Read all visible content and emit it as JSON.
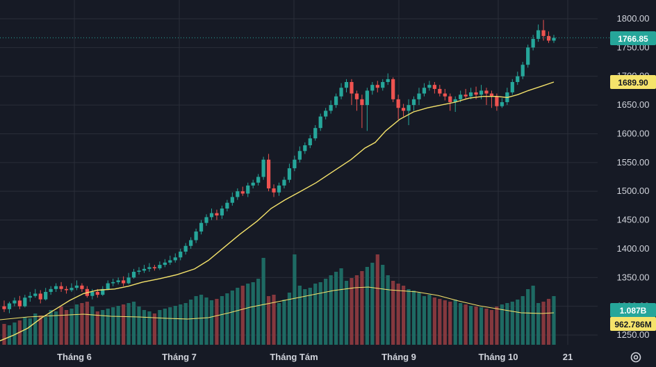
{
  "chart_data": {
    "type": "candlestick",
    "price_axis": {
      "ticks": [
        "1800.00",
        "1750.00",
        "1700.00",
        "1650.00",
        "1600.00",
        "1550.00",
        "1500.00",
        "1450.00",
        "1400.00",
        "1350.00",
        "1300.00",
        "1250.00"
      ],
      "range": [
        1240,
        1820
      ]
    },
    "x_axis": {
      "ticks": [
        "Tháng 6",
        "Tháng 7",
        "Tháng Tám",
        "Tháng 9",
        "Tháng 10",
        "21"
      ]
    },
    "last_price": "1766.85",
    "ma_price": "1689.90",
    "last_volume": "1.087B",
    "ma_volume": "962.786M",
    "colors": {
      "up": "#26a69a",
      "down": "#ef5350",
      "ma": "#f5e36b",
      "background": "#161a25",
      "grid": "#2a2e39",
      "text": "#d1d4dc"
    },
    "price_ma_points": [
      [
        0,
        1240
      ],
      [
        20,
        1250
      ],
      [
        40,
        1262
      ],
      [
        60,
        1280
      ],
      [
        80,
        1295
      ],
      [
        100,
        1310
      ],
      [
        120,
        1322
      ],
      [
        140,
        1328
      ],
      [
        165,
        1330
      ],
      [
        185,
        1335
      ],
      [
        205,
        1342
      ],
      [
        230,
        1348
      ],
      [
        255,
        1355
      ],
      [
        280,
        1365
      ],
      [
        300,
        1380
      ],
      [
        320,
        1400
      ],
      [
        345,
        1425
      ],
      [
        370,
        1448
      ],
      [
        390,
        1470
      ],
      [
        410,
        1485
      ],
      [
        430,
        1498
      ],
      [
        455,
        1515
      ],
      [
        480,
        1535
      ],
      [
        505,
        1555
      ],
      [
        525,
        1575
      ],
      [
        540,
        1585
      ],
      [
        555,
        1605
      ],
      [
        575,
        1625
      ],
      [
        595,
        1638
      ],
      [
        615,
        1645
      ],
      [
        635,
        1650
      ],
      [
        655,
        1655
      ],
      [
        675,
        1662
      ],
      [
        695,
        1665
      ],
      [
        715,
        1665
      ],
      [
        730,
        1663
      ],
      [
        745,
        1668
      ],
      [
        760,
        1675
      ],
      [
        780,
        1683
      ],
      [
        797,
        1690
      ]
    ],
    "volume_ma_points": [
      [
        0,
        460
      ],
      [
        40,
        456
      ],
      [
        80,
        454
      ],
      [
        120,
        452
      ],
      [
        160,
        455
      ],
      [
        200,
        456
      ],
      [
        240,
        458
      ],
      [
        270,
        459
      ],
      [
        300,
        457
      ],
      [
        330,
        450
      ],
      [
        360,
        442
      ],
      [
        390,
        436
      ],
      [
        420,
        430
      ],
      [
        450,
        424
      ],
      [
        480,
        418
      ],
      [
        510,
        414
      ],
      [
        530,
        413
      ],
      [
        560,
        417
      ],
      [
        600,
        420
      ],
      [
        630,
        425
      ],
      [
        660,
        433
      ],
      [
        690,
        440
      ],
      [
        720,
        445
      ],
      [
        750,
        450
      ],
      [
        780,
        451
      ],
      [
        797,
        450
      ]
    ],
    "candles": [
      [
        1300,
        1295,
        1310,
        1290
      ],
      [
        1295,
        1305,
        1308,
        1288
      ],
      [
        1305,
        1310,
        1315,
        1300
      ],
      [
        1310,
        1300,
        1318,
        1295
      ],
      [
        1300,
        1315,
        1320,
        1298
      ],
      [
        1315,
        1318,
        1325,
        1308
      ],
      [
        1318,
        1322,
        1330,
        1315
      ],
      [
        1322,
        1312,
        1328,
        1305
      ],
      [
        1312,
        1325,
        1332,
        1310
      ],
      [
        1325,
        1330,
        1335,
        1320
      ],
      [
        1330,
        1335,
        1340,
        1325
      ],
      [
        1335,
        1330,
        1342,
        1325
      ],
      [
        1330,
        1328,
        1335,
        1322
      ],
      [
        1328,
        1332,
        1340,
        1325
      ],
      [
        1332,
        1336,
        1345,
        1328
      ],
      [
        1336,
        1330,
        1340,
        1325
      ],
      [
        1330,
        1318,
        1335,
        1315
      ],
      [
        1318,
        1325,
        1330,
        1312
      ],
      [
        1325,
        1320,
        1330,
        1315
      ],
      [
        1320,
        1330,
        1335,
        1318
      ],
      [
        1330,
        1340,
        1345,
        1328
      ],
      [
        1340,
        1342,
        1348,
        1335
      ],
      [
        1342,
        1345,
        1350,
        1338
      ],
      [
        1345,
        1340,
        1352,
        1335
      ],
      [
        1340,
        1350,
        1358,
        1338
      ],
      [
        1350,
        1360,
        1365,
        1348
      ],
      [
        1360,
        1362,
        1368,
        1355
      ],
      [
        1362,
        1365,
        1372,
        1358
      ],
      [
        1365,
        1368,
        1375,
        1360
      ],
      [
        1368,
        1366,
        1372,
        1362
      ],
      [
        1366,
        1372,
        1378,
        1363
      ],
      [
        1372,
        1376,
        1382,
        1368
      ],
      [
        1376,
        1380,
        1388,
        1372
      ],
      [
        1380,
        1385,
        1392,
        1376
      ],
      [
        1385,
        1395,
        1400,
        1380
      ],
      [
        1395,
        1405,
        1410,
        1390
      ],
      [
        1405,
        1415,
        1420,
        1400
      ],
      [
        1415,
        1430,
        1435,
        1410
      ],
      [
        1430,
        1445,
        1450,
        1425
      ],
      [
        1445,
        1455,
        1460,
        1440
      ],
      [
        1455,
        1462,
        1470,
        1450
      ],
      [
        1462,
        1458,
        1468,
        1450
      ],
      [
        1458,
        1470,
        1475,
        1452
      ],
      [
        1470,
        1480,
        1485,
        1465
      ],
      [
        1480,
        1490,
        1498,
        1475
      ],
      [
        1490,
        1500,
        1505,
        1485
      ],
      [
        1500,
        1496,
        1508,
        1492
      ],
      [
        1496,
        1510,
        1515,
        1490
      ],
      [
        1510,
        1515,
        1520,
        1505
      ],
      [
        1515,
        1525,
        1530,
        1510
      ],
      [
        1525,
        1555,
        1560,
        1520
      ],
      [
        1555,
        1505,
        1565,
        1500
      ],
      [
        1505,
        1498,
        1512,
        1490
      ],
      [
        1498,
        1510,
        1515,
        1492
      ],
      [
        1510,
        1520,
        1525,
        1505
      ],
      [
        1520,
        1540,
        1548,
        1515
      ],
      [
        1540,
        1555,
        1562,
        1535
      ],
      [
        1555,
        1570,
        1578,
        1550
      ],
      [
        1570,
        1580,
        1585,
        1565
      ],
      [
        1580,
        1592,
        1598,
        1575
      ],
      [
        1592,
        1610,
        1615,
        1588
      ],
      [
        1610,
        1630,
        1635,
        1605
      ],
      [
        1630,
        1640,
        1645,
        1625
      ],
      [
        1640,
        1650,
        1658,
        1635
      ],
      [
        1650,
        1665,
        1670,
        1645
      ],
      [
        1665,
        1680,
        1688,
        1660
      ],
      [
        1680,
        1690,
        1695,
        1672
      ],
      [
        1690,
        1670,
        1695,
        1650
      ],
      [
        1670,
        1660,
        1675,
        1640
      ],
      [
        1660,
        1650,
        1668,
        1610
      ],
      [
        1650,
        1675,
        1680,
        1605
      ],
      [
        1675,
        1685,
        1690,
        1668
      ],
      [
        1685,
        1680,
        1692,
        1672
      ],
      [
        1680,
        1690,
        1695,
        1675
      ],
      [
        1690,
        1695,
        1705,
        1685
      ],
      [
        1695,
        1660,
        1698,
        1655
      ],
      [
        1660,
        1645,
        1668,
        1625
      ],
      [
        1645,
        1640,
        1652,
        1630
      ],
      [
        1640,
        1650,
        1660,
        1615
      ],
      [
        1650,
        1660,
        1665,
        1640
      ],
      [
        1660,
        1670,
        1680,
        1650
      ],
      [
        1670,
        1680,
        1688,
        1665
      ],
      [
        1680,
        1685,
        1692,
        1675
      ],
      [
        1685,
        1678,
        1690,
        1670
      ],
      [
        1678,
        1670,
        1685,
        1665
      ],
      [
        1670,
        1665,
        1678,
        1658
      ],
      [
        1665,
        1655,
        1670,
        1640
      ],
      [
        1655,
        1660,
        1665,
        1638
      ],
      [
        1660,
        1668,
        1675,
        1655
      ],
      [
        1668,
        1665,
        1678,
        1660
      ],
      [
        1665,
        1672,
        1680,
        1660
      ],
      [
        1672,
        1668,
        1682,
        1660
      ],
      [
        1668,
        1675,
        1685,
        1660
      ],
      [
        1675,
        1670,
        1680,
        1650
      ],
      [
        1670,
        1665,
        1675,
        1645
      ],
      [
        1665,
        1648,
        1670,
        1640
      ],
      [
        1648,
        1655,
        1662,
        1645
      ],
      [
        1655,
        1672,
        1680,
        1650
      ],
      [
        1672,
        1690,
        1695,
        1668
      ],
      [
        1690,
        1700,
        1708,
        1685
      ],
      [
        1700,
        1720,
        1725,
        1695
      ],
      [
        1720,
        1750,
        1755,
        1715
      ],
      [
        1750,
        1765,
        1772,
        1745
      ],
      [
        1765,
        1780,
        1790,
        1760
      ],
      [
        1780,
        1770,
        1798,
        1762
      ],
      [
        1770,
        1762,
        1778,
        1758
      ],
      [
        1762,
        1766.85,
        1772,
        1758
      ]
    ],
    "volumes": [
      30,
      28,
      32,
      35,
      40,
      38,
      45,
      42,
      40,
      50,
      48,
      55,
      50,
      52,
      58,
      60,
      62,
      55,
      48,
      50,
      52,
      54,
      56,
      58,
      60,
      62,
      55,
      50,
      48,
      45,
      50,
      52,
      54,
      56,
      58,
      60,
      65,
      70,
      72,
      68,
      64,
      66,
      70,
      74,
      78,
      82,
      85,
      88,
      90,
      95,
      125,
      70,
      72,
      60,
      65,
      75,
      130,
      85,
      80,
      82,
      88,
      90,
      95,
      100,
      105,
      110,
      92,
      96,
      100,
      106,
      112,
      118,
      130,
      115,
      100,
      92,
      88,
      85,
      80,
      78,
      75,
      70,
      72,
      68,
      66,
      64,
      62,
      65,
      60,
      58,
      56,
      55,
      54,
      52,
      50,
      55,
      58,
      60,
      62,
      65,
      70,
      80,
      85,
      60,
      62,
      66,
      70
    ]
  }
}
